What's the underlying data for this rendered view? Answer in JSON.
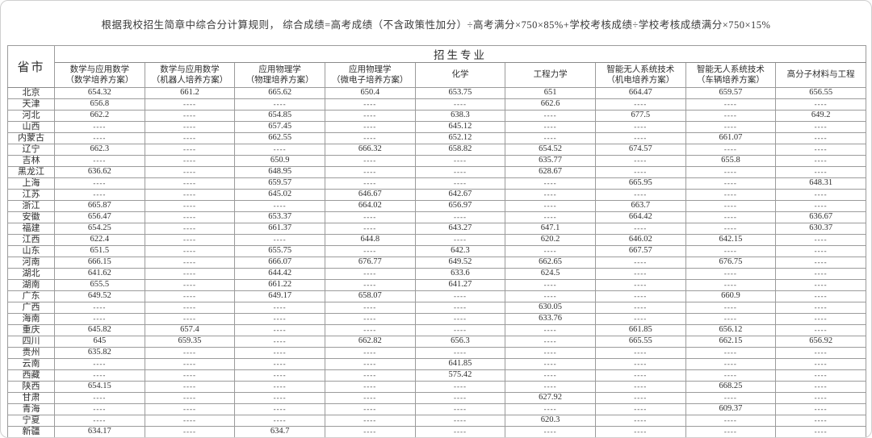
{
  "note": "根据我校招生简章中综合分计算规则， 综合成绩=高考成绩（不含政策性加分）÷高考满分×750×85%+学校考核成绩÷学校考核成绩满分×750×15%",
  "table": {
    "corner_header": "省市",
    "group_header": "招生专业",
    "empty_marker": "----",
    "columns": [
      {
        "line1": "数学与应用数学",
        "line2": "（数学培养方案）"
      },
      {
        "line1": "数学与应用数学",
        "line2": "（机器人培养方案）"
      },
      {
        "line1": "应用物理学",
        "line2": "（物理培养方案）"
      },
      {
        "line1": "应用物理学",
        "line2": "（微电子培养方案）"
      },
      {
        "line1": "化学",
        "line2": ""
      },
      {
        "line1": "工程力学",
        "line2": ""
      },
      {
        "line1": "智能无人系统技术",
        "line2": "（机电培养方案）"
      },
      {
        "line1": "智能无人系统技术",
        "line2": "（车辆培养方案）"
      },
      {
        "line1": "高分子材料与工程",
        "line2": ""
      }
    ],
    "rows": [
      {
        "province": "北京",
        "values": [
          "654.32",
          "661.2",
          "665.62",
          "650.4",
          "653.75",
          "651",
          "664.47",
          "659.57",
          "656.55"
        ]
      },
      {
        "province": "天津",
        "values": [
          "656.8",
          "----",
          "----",
          "----",
          "----",
          "662.6",
          "----",
          "----",
          "----"
        ]
      },
      {
        "province": "河北",
        "values": [
          "662.2",
          "----",
          "654.85",
          "----",
          "638.3",
          "----",
          "677.5",
          "----",
          "649.2"
        ]
      },
      {
        "province": "山西",
        "values": [
          "----",
          "----",
          "657.45",
          "----",
          "645.12",
          "----",
          "----",
          "----",
          "----"
        ]
      },
      {
        "province": "内蒙古",
        "values": [
          "----",
          "----",
          "662.55",
          "----",
          "652.12",
          "----",
          "----",
          "661.07",
          "----"
        ]
      },
      {
        "province": "辽宁",
        "values": [
          "662.3",
          "----",
          "----",
          "666.32",
          "658.82",
          "654.52",
          "674.57",
          "----",
          "----"
        ]
      },
      {
        "province": "吉林",
        "values": [
          "----",
          "----",
          "650.9",
          "----",
          "----",
          "635.77",
          "----",
          "655.8",
          "----"
        ]
      },
      {
        "province": "黑龙江",
        "values": [
          "636.62",
          "----",
          "648.95",
          "----",
          "----",
          "628.67",
          "----",
          "----",
          "----"
        ]
      },
      {
        "province": "上海",
        "values": [
          "----",
          "----",
          "659.57",
          "----",
          "----",
          "----",
          "665.95",
          "----",
          "648.31"
        ]
      },
      {
        "province": "江苏",
        "values": [
          "----",
          "----",
          "645.02",
          "646.67",
          "642.67",
          "----",
          "----",
          "----",
          "----"
        ]
      },
      {
        "province": "浙江",
        "values": [
          "665.87",
          "----",
          "----",
          "664.02",
          "656.97",
          "----",
          "663.7",
          "----",
          "----"
        ]
      },
      {
        "province": "安徽",
        "values": [
          "656.47",
          "----",
          "653.37",
          "----",
          "----",
          "----",
          "664.42",
          "----",
          "636.67"
        ]
      },
      {
        "province": "福建",
        "values": [
          "654.25",
          "----",
          "661.37",
          "----",
          "643.27",
          "647.1",
          "----",
          "----",
          "630.37"
        ]
      },
      {
        "province": "江西",
        "values": [
          "622.4",
          "----",
          "----",
          "644.8",
          "----",
          "620.2",
          "646.02",
          "642.15",
          "----"
        ]
      },
      {
        "province": "山东",
        "values": [
          "651.5",
          "----",
          "655.75",
          "----",
          "642.3",
          "----",
          "667.57",
          "----",
          "----"
        ]
      },
      {
        "province": "河南",
        "values": [
          "666.15",
          "----",
          "666.07",
          "676.77",
          "649.52",
          "662.65",
          "----",
          "676.75",
          "----"
        ]
      },
      {
        "province": "湖北",
        "values": [
          "641.62",
          "----",
          "644.42",
          "----",
          "633.6",
          "624.5",
          "----",
          "----",
          "----"
        ]
      },
      {
        "province": "湖南",
        "values": [
          "655.5",
          "----",
          "661.22",
          "----",
          "641.27",
          "----",
          "----",
          "----",
          "----"
        ]
      },
      {
        "province": "广东",
        "values": [
          "649.52",
          "----",
          "649.17",
          "658.07",
          "----",
          "----",
          "----",
          "660.9",
          "----"
        ]
      },
      {
        "province": "广西",
        "values": [
          "----",
          "----",
          "----",
          "----",
          "----",
          "630.05",
          "----",
          "----",
          "----"
        ]
      },
      {
        "province": "海南",
        "values": [
          "----",
          "----",
          "----",
          "----",
          "----",
          "633.76",
          "----",
          "----",
          "----"
        ]
      },
      {
        "province": "重庆",
        "values": [
          "645.82",
          "657.4",
          "----",
          "----",
          "----",
          "----",
          "661.85",
          "656.12",
          "----"
        ]
      },
      {
        "province": "四川",
        "values": [
          "645",
          "659.35",
          "----",
          "662.82",
          "656.3",
          "----",
          "665.55",
          "662.15",
          "656.92"
        ]
      },
      {
        "province": "贵州",
        "values": [
          "635.82",
          "----",
          "----",
          "----",
          "----",
          "----",
          "----",
          "----",
          "----"
        ]
      },
      {
        "province": "云南",
        "values": [
          "----",
          "----",
          "----",
          "----",
          "641.85",
          "----",
          "----",
          "----",
          "----"
        ]
      },
      {
        "province": "西藏",
        "values": [
          "----",
          "----",
          "----",
          "----",
          "575.42",
          "----",
          "----",
          "----",
          "----"
        ]
      },
      {
        "province": "陕西",
        "values": [
          "654.15",
          "----",
          "----",
          "----",
          "----",
          "----",
          "----",
          "668.25",
          "----"
        ]
      },
      {
        "province": "甘肃",
        "values": [
          "----",
          "----",
          "----",
          "----",
          "----",
          "627.92",
          "----",
          "----",
          "----"
        ]
      },
      {
        "province": "青海",
        "values": [
          "----",
          "----",
          "----",
          "----",
          "----",
          "----",
          "----",
          "609.37",
          "----"
        ]
      },
      {
        "province": "宁夏",
        "values": [
          "----",
          "----",
          "----",
          "----",
          "----",
          "620.3",
          "----",
          "----",
          "----"
        ]
      },
      {
        "province": "新疆",
        "values": [
          "634.17",
          "----",
          "634.7",
          "----",
          "----",
          "----",
          "----",
          "----",
          "----"
        ]
      }
    ]
  },
  "colors": {
    "background": "#ffffff",
    "border_inner": "#9b9b9b",
    "border_outer": "#5a5a5a",
    "text": "#2f2f2f"
  }
}
